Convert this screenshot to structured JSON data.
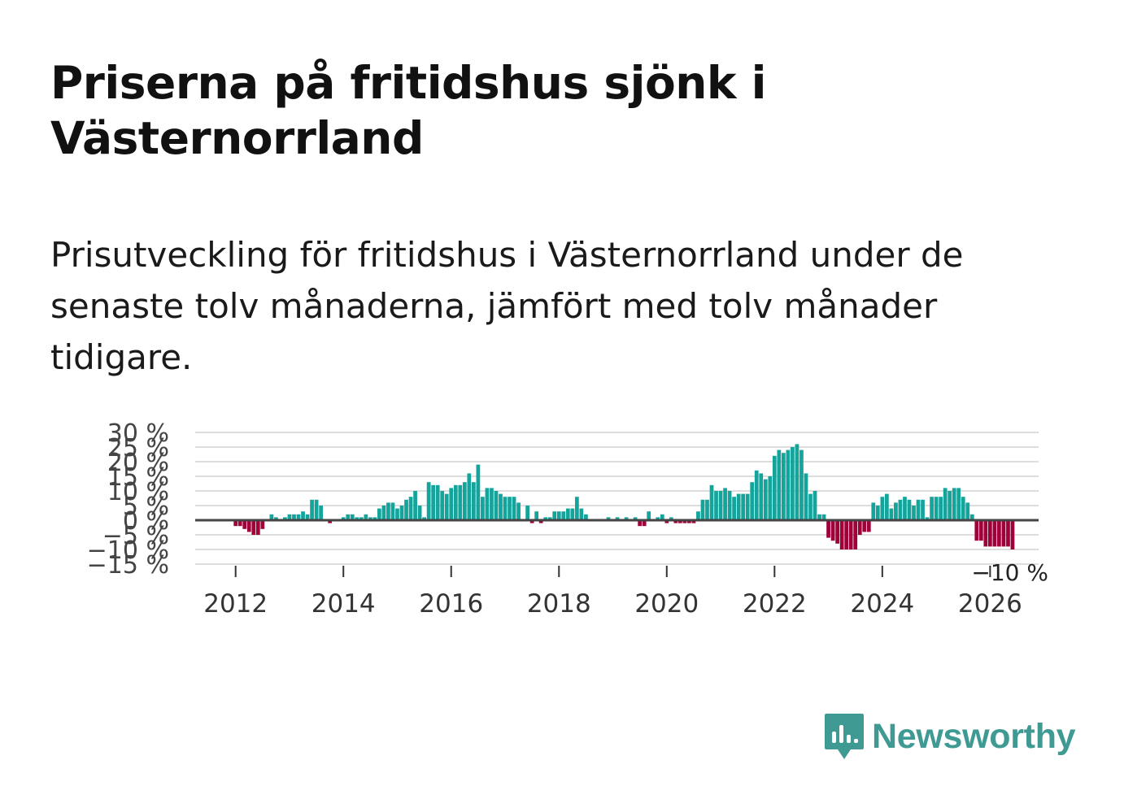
{
  "title": "Priserna på fritidshus sjönk i Västernorrland",
  "subtitle": "Prisutveckling för fritidshus i Västernorrland under de senaste tolv månaderna, jämfört med tolv månader tidigare.",
  "brand": {
    "name": "Newsworthy",
    "icon": "newsworthy-logo-icon"
  },
  "colors": {
    "positive": "#15a49b",
    "negative": "#a0003a",
    "grid": "#dddddd",
    "zero": "#444444"
  },
  "chart_data": {
    "type": "bar",
    "title": "",
    "xlabel": "",
    "ylabel": "",
    "ylim": [
      -15,
      30
    ],
    "xlim": [
      2011.25,
      2026.9
    ],
    "y_ticks": [
      -15,
      -10,
      -5,
      0,
      5,
      10,
      15,
      20,
      25,
      30
    ],
    "y_tick_labels": [
      "−15 %",
      "−10 %",
      "−5 %",
      "0 %",
      "5 %",
      "10 %",
      "15 %",
      "20 %",
      "25 %",
      "30 %"
    ],
    "x_ticks": [
      2012,
      2014,
      2016,
      2018,
      2020,
      2022,
      2024,
      2026
    ],
    "x_tick_labels": [
      "2012",
      "2014",
      "2016",
      "2018",
      "2020",
      "2022",
      "2024",
      "2026"
    ],
    "end_label": "−10 %",
    "series": [
      {
        "name": "Prisutveckling",
        "start": "2012-01",
        "frequency": "monthly",
        "values": [
          -2,
          -2,
          -3,
          -4,
          -5,
          -5,
          -3,
          0,
          2,
          1,
          0,
          1,
          2,
          2,
          2,
          3,
          2,
          7,
          7,
          5,
          0,
          -1,
          0,
          0,
          1,
          2,
          2,
          1,
          1,
          2,
          1,
          1,
          4,
          5,
          6,
          6,
          4,
          5,
          7,
          8,
          10,
          5,
          1,
          13,
          12,
          12,
          10,
          9,
          11,
          12,
          12,
          13,
          16,
          13,
          19,
          8,
          11,
          11,
          10,
          9,
          8,
          8,
          8,
          6,
          0,
          5,
          -1,
          3,
          -1,
          1,
          1,
          3,
          3,
          3,
          4,
          4,
          8,
          4,
          2,
          0,
          0,
          0,
          0,
          1,
          0,
          1,
          0,
          1,
          0,
          1,
          -2,
          -2,
          3,
          0,
          1,
          2,
          -1,
          1,
          -1,
          -1,
          -1,
          -1,
          -1,
          3,
          7,
          7,
          12,
          10,
          10,
          11,
          10,
          8,
          9,
          9,
          9,
          13,
          17,
          16,
          14,
          15,
          22,
          24,
          23,
          24,
          25,
          26,
          24,
          16,
          9,
          10,
          2,
          2,
          -6,
          -7,
          -8,
          -10,
          -10,
          -10,
          -10,
          -5,
          -4,
          -4,
          6,
          5,
          8,
          9,
          4,
          6,
          7,
          8,
          7,
          5,
          7,
          7,
          1,
          8,
          8,
          8,
          11,
          10,
          11,
          11,
          8,
          6,
          2,
          -7,
          -7,
          -9,
          -9,
          -9,
          -9,
          -9,
          -9,
          -10
        ]
      }
    ]
  }
}
